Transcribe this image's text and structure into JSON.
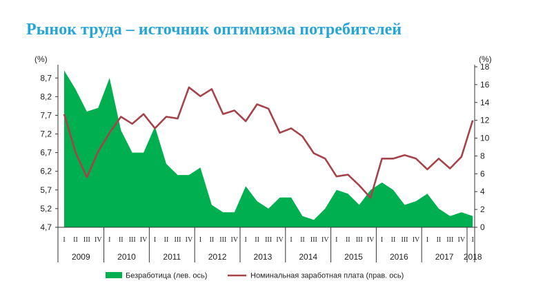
{
  "title": "Рынок труда – источник оптимизма потребителей",
  "chart_data": {
    "type": "area+line",
    "left_axis": {
      "unit": "(%)",
      "ticks": [
        "4,7",
        "5,2",
        "5,7",
        "6,2",
        "6,7",
        "7,2",
        "7,7",
        "8,2",
        "8,7"
      ],
      "min": 4.7,
      "max": 9.0
    },
    "right_axis": {
      "unit": "(%)",
      "ticks": [
        "0",
        "2",
        "4",
        "6",
        "8",
        "10",
        "12",
        "14",
        "16",
        "18"
      ],
      "min": 0,
      "max": 18
    },
    "quarters": [
      "I",
      "II",
      "III",
      "IV",
      "I",
      "II",
      "III",
      "IV",
      "I",
      "II",
      "III",
      "IV",
      "I",
      "II",
      "III",
      "IV",
      "I",
      "II",
      "III",
      "IV",
      "I",
      "II",
      "III",
      "IV",
      "I",
      "II",
      "III",
      "IV",
      "I",
      "II",
      "III",
      "IV",
      "I",
      "II",
      "III",
      "IV",
      "I"
    ],
    "years": [
      {
        "label": "2009",
        "start": 0,
        "span": 4
      },
      {
        "label": "2010",
        "start": 4,
        "span": 4
      },
      {
        "label": "2011",
        "start": 8,
        "span": 4
      },
      {
        "label": "2012",
        "start": 12,
        "span": 4
      },
      {
        "label": "2013",
        "start": 16,
        "span": 4
      },
      {
        "label": "2014",
        "start": 20,
        "span": 4
      },
      {
        "label": "2015",
        "start": 24,
        "span": 4
      },
      {
        "label": "2016",
        "start": 28,
        "span": 4
      },
      {
        "label": "2017",
        "start": 32,
        "span": 4
      },
      {
        "label": "2018",
        "start": 36,
        "span": 1
      }
    ],
    "series": [
      {
        "name": "Безработица (лев. ось)",
        "type": "area",
        "axis": "left",
        "color": "#00b050",
        "values": [
          8.9,
          8.4,
          7.8,
          7.9,
          8.7,
          7.3,
          6.7,
          6.7,
          7.4,
          6.4,
          6.1,
          6.1,
          6.3,
          5.3,
          5.1,
          5.1,
          5.8,
          5.4,
          5.2,
          5.5,
          5.5,
          5.0,
          4.9,
          5.2,
          5.7,
          5.6,
          5.3,
          5.7,
          5.9,
          5.7,
          5.3,
          5.4,
          5.6,
          5.2,
          5.0,
          5.1,
          5.0
        ]
      },
      {
        "name": "Номинальная заработная плата (прав. ось)",
        "type": "line",
        "axis": "right",
        "color": "#a5434a",
        "values": [
          12.7,
          8.4,
          5.6,
          8.5,
          10.6,
          12.4,
          11.6,
          12.7,
          11.1,
          12.4,
          12.2,
          15.7,
          14.7,
          15.5,
          12.7,
          13.1,
          11.9,
          13.8,
          13.3,
          10.6,
          11.1,
          10.2,
          8.3,
          7.7,
          5.7,
          5.9,
          4.7,
          3.3,
          7.7,
          7.7,
          8.1,
          7.7,
          6.5,
          7.7,
          6.6,
          7.9,
          12.0
        ]
      }
    ],
    "legend_position": "bottom",
    "grid": false
  }
}
